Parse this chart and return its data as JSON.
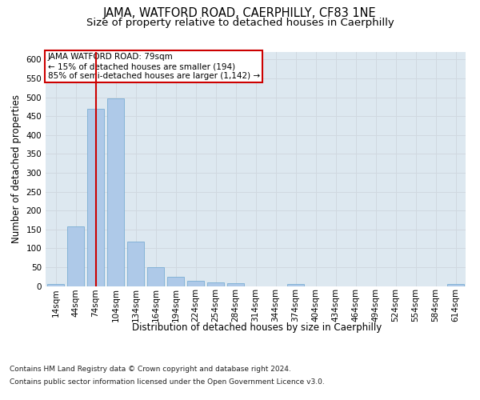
{
  "title": "JAMA, WATFORD ROAD, CAERPHILLY, CF83 1NE",
  "subtitle": "Size of property relative to detached houses in Caerphilly",
  "xlabel_bottom": "Distribution of detached houses by size in Caerphilly",
  "ylabel": "Number of detached properties",
  "bins": [
    "14sqm",
    "44sqm",
    "74sqm",
    "104sqm",
    "134sqm",
    "164sqm",
    "194sqm",
    "224sqm",
    "254sqm",
    "284sqm",
    "314sqm",
    "344sqm",
    "374sqm",
    "404sqm",
    "434sqm",
    "464sqm",
    "494sqm",
    "524sqm",
    "554sqm",
    "584sqm",
    "614sqm"
  ],
  "values": [
    5,
    157,
    470,
    497,
    117,
    50,
    25,
    13,
    10,
    7,
    0,
    0,
    6,
    0,
    0,
    0,
    0,
    0,
    0,
    0,
    5
  ],
  "bar_color": "#aec9e8",
  "bar_edge_color": "#7aadd4",
  "vline_x_index": 2,
  "annotation_text": "JAMA WATFORD ROAD: 79sqm\n← 15% of detached houses are smaller (194)\n85% of semi-detached houses are larger (1,142) →",
  "annotation_box_color": "#ffffff",
  "annotation_box_edge": "#cc0000",
  "ylim": [
    0,
    620
  ],
  "yticks": [
    0,
    50,
    100,
    150,
    200,
    250,
    300,
    350,
    400,
    450,
    500,
    550,
    600
  ],
  "grid_color": "#d0d8e0",
  "bg_color": "#dde8f0",
  "footer_line1": "Contains HM Land Registry data © Crown copyright and database right 2024.",
  "footer_line2": "Contains public sector information licensed under the Open Government Licence v3.0.",
  "title_fontsize": 10.5,
  "subtitle_fontsize": 9.5,
  "tick_fontsize": 7.5,
  "ylabel_fontsize": 8.5,
  "xlabel_fontsize": 8.5,
  "footer_fontsize": 6.5
}
